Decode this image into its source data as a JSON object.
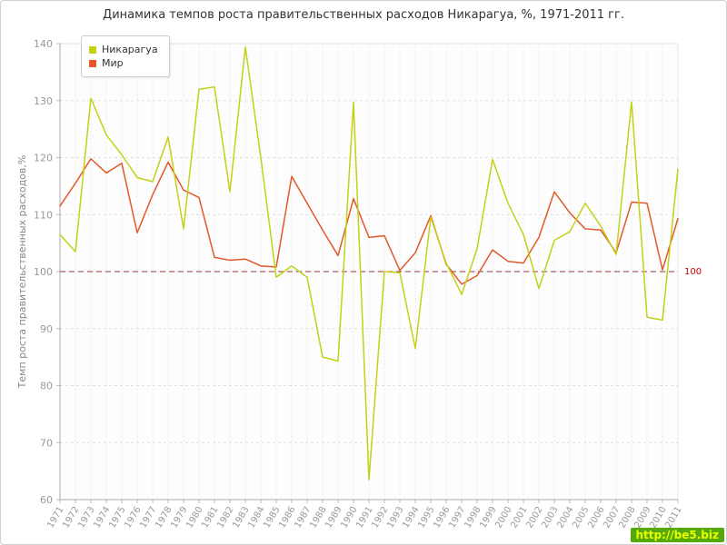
{
  "title": "Динамика темпов роста правительственных расходов Никарагуа, %, 1971-2011 гг.",
  "watermark": "http://be5.biz",
  "reference_line": {
    "value": 100,
    "label": "100",
    "color": "#cc0000",
    "line_color": "#8a3a3a"
  },
  "chart_data": {
    "type": "line",
    "title": "Динамика темпов роста правительственных расходов Никарагуа, %, 1971-2011 гг.",
    "xlabel": "",
    "ylabel": "Темп роста правительственных расходов,%",
    "ylim": [
      60,
      140
    ],
    "y_ticks": [
      60,
      70,
      80,
      90,
      100,
      110,
      120,
      130,
      140
    ],
    "grid": true,
    "legend_position": "top-left",
    "categories": [
      "1971",
      "1972",
      "1973",
      "1974",
      "1975",
      "1976",
      "1977",
      "1978",
      "1979",
      "1980",
      "1981",
      "1982",
      "1983",
      "1984",
      "1985",
      "1986",
      "1987",
      "1988",
      "1989",
      "1990",
      "1991",
      "1992",
      "1993",
      "1994",
      "1995",
      "1996",
      "1997",
      "1998",
      "1999",
      "2000",
      "2001",
      "2002",
      "2003",
      "2004",
      "2005",
      "2006",
      "2007",
      "2008",
      "2009",
      "2010",
      "2011"
    ],
    "series": [
      {
        "name": "Никарагуа",
        "color": "#c3d117",
        "values": [
          106.5,
          103.5,
          130.4,
          124.0,
          120.5,
          116.5,
          115.8,
          123.6,
          107.5,
          132.0,
          132.4,
          114.0,
          139.4,
          120.0,
          99.0,
          101.0,
          99.0,
          85.0,
          84.3,
          129.7,
          63.5,
          100.0,
          99.8,
          86.5,
          109.5,
          101.5,
          96.0,
          104.0,
          119.7,
          112.0,
          106.5,
          97.0,
          105.5,
          107.0,
          112.0,
          108.0,
          103.0,
          129.8,
          92.0,
          91.5,
          118.0
        ]
      },
      {
        "name": "Мир",
        "color": "#e2582a",
        "values": [
          111.5,
          115.5,
          119.8,
          117.3,
          119.0,
          106.8,
          113.5,
          119.2,
          114.3,
          113.0,
          102.5,
          102.0,
          102.2,
          101.0,
          100.8,
          116.7,
          112.0,
          107.3,
          102.8,
          112.8,
          106.0,
          106.3,
          100.2,
          103.3,
          109.8,
          101.3,
          97.8,
          99.3,
          103.8,
          101.8,
          101.5,
          106.0,
          114.0,
          110.3,
          107.5,
          107.3,
          103.3,
          112.2,
          112.0,
          100.3,
          109.3
        ]
      }
    ]
  }
}
